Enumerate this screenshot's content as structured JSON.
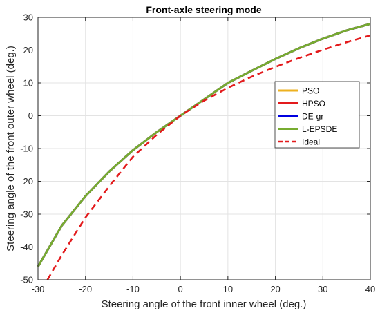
{
  "chart_data": {
    "type": "line",
    "title": "Front-axle steering mode",
    "xlabel": "Steering angle of the front inner wheel (deg.)",
    "ylabel": "Steering angle of the front outer wheel (deg.)",
    "xlim": [
      -30,
      40
    ],
    "ylim": [
      -50,
      30
    ],
    "xticks": [
      -30,
      -20,
      -10,
      0,
      10,
      20,
      30,
      40
    ],
    "yticks": [
      -50,
      -40,
      -30,
      -20,
      -10,
      0,
      10,
      20,
      30
    ],
    "grid": true,
    "legend_position": "right",
    "series": [
      {
        "name": "PSO",
        "color": "#EDB120",
        "dash": "solid",
        "x": [
          -30,
          -25,
          -20,
          -15,
          -10,
          -5,
          0,
          5,
          10,
          15,
          20,
          25,
          30,
          35,
          40
        ],
        "y": [
          -46,
          -33.5,
          -24.5,
          -17,
          -10.5,
          -5,
          0,
          5,
          10,
          13.7,
          17.3,
          20.6,
          23.5,
          26,
          28
        ]
      },
      {
        "name": "HPSO",
        "color": "#E31A1C",
        "dash": "solid",
        "x": [
          -30,
          -25,
          -20,
          -15,
          -10,
          -5,
          0,
          5,
          10,
          15,
          20,
          25,
          30,
          35,
          40
        ],
        "y": [
          -46,
          -33.5,
          -24.5,
          -17,
          -10.5,
          -5,
          0,
          5,
          10,
          13.7,
          17.3,
          20.6,
          23.5,
          26,
          28
        ]
      },
      {
        "name": "DE-gr",
        "color": "#0000E0",
        "dash": "solid",
        "x": [
          -30,
          -25,
          -20,
          -15,
          -10,
          -5,
          0,
          5,
          10,
          15,
          20,
          25,
          30,
          35,
          40
        ],
        "y": [
          -46,
          -33.5,
          -24.5,
          -17,
          -10.5,
          -5,
          0,
          5,
          10,
          13.7,
          17.3,
          20.6,
          23.5,
          26,
          28
        ]
      },
      {
        "name": "L-EPSDE",
        "color": "#77AC30",
        "dash": "solid",
        "x": [
          -30,
          -25,
          -20,
          -15,
          -10,
          -5,
          0,
          5,
          10,
          15,
          20,
          25,
          30,
          35,
          40
        ],
        "y": [
          -46,
          -33.5,
          -24.5,
          -17,
          -10.5,
          -5,
          0,
          5,
          10,
          13.7,
          17.3,
          20.6,
          23.5,
          26,
          28
        ]
      },
      {
        "name": "Ideal",
        "color": "#E31A1C",
        "dash": "dashed",
        "x": [
          -28,
          -25,
          -20,
          -15,
          -10,
          -5,
          0,
          5,
          10,
          15,
          20,
          25,
          30,
          35,
          40
        ],
        "y": [
          -50,
          -42.5,
          -31,
          -21.5,
          -12.5,
          -5.8,
          0,
          4.6,
          8.5,
          11.9,
          14.9,
          17.6,
          20.1,
          22.4,
          24.5
        ]
      }
    ]
  }
}
